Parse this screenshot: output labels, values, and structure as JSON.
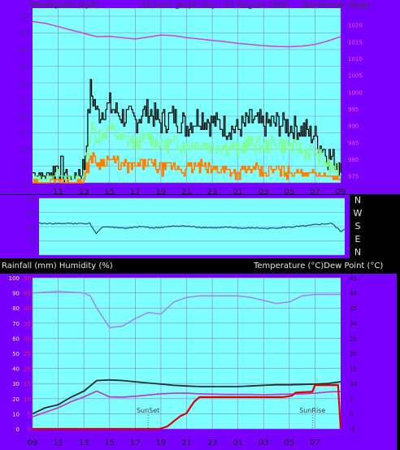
{
  "header": {
    "left_label": "Windspeed (kph)",
    "title": "24 hour graph day : 07 August 2020",
    "right_label": "Barometer (hpa)"
  },
  "lower_header": {
    "left_label": "Rainfall (mm)  Humidity (%)",
    "right_label": "Temperature (°C)Dew Point (°C)"
  },
  "colors": {
    "frame": "#7700ff",
    "plot_bg": "#80ffff",
    "grid": "#8a82c8",
    "left_tick": "#3b3b7a",
    "baro": "#d040e0",
    "gust": "#000000",
    "wind": "#80ff80",
    "wind_avg": "#ff8000",
    "direction": "#1f4f7f",
    "humidity": "#a080ff",
    "temperature": "#203028",
    "dewpoint": "#c030d0",
    "rain": "#e00000",
    "red_tick": "#ff2040"
  },
  "chart_data": [
    {
      "type": "line",
      "title": "24 hour graph day : 07 August 2020",
      "ylabel_left": "Windspeed (kph)",
      "ylabel_right": "Barometer (hpa)",
      "x_ticks": [
        "11",
        "13",
        "15",
        "17",
        "19",
        "21",
        "23",
        "01",
        "03",
        "05",
        "07",
        "09"
      ],
      "left_ticks": [
        "0",
        "5",
        "10",
        "15",
        "20",
        "25",
        "30",
        "35",
        "40",
        "45",
        "50"
      ],
      "right_ticks": [
        "975",
        "980",
        "985",
        "990",
        "995",
        "1000",
        "1005",
        "1010",
        "1015",
        "1020"
      ],
      "ylim_left": [
        0,
        50
      ],
      "ylim_right": [
        973,
        1025
      ],
      "grid": true,
      "series": [
        {
          "name": "Barometer",
          "axis": "right",
          "x": [
            9,
            10,
            11,
            12,
            13,
            14,
            15,
            16,
            17,
            18,
            19,
            20,
            21,
            22,
            23,
            24,
            25,
            26,
            27,
            28,
            29,
            30,
            31,
            32,
            33
          ],
          "values": [
            1021,
            1020.5,
            1019.5,
            1018.5,
            1017.5,
            1016.5,
            1016.6,
            1016.2,
            1015.8,
            1016.4,
            1017,
            1016.8,
            1016.2,
            1015.8,
            1015.4,
            1015,
            1014.5,
            1014.2,
            1013.8,
            1013.6,
            1013.5,
            1013.7,
            1014.2,
            1015.2,
            1016.5
          ]
        },
        {
          "name": "Wind gust",
          "axis": "left",
          "x": [
            9,
            10,
            11,
            12,
            13,
            13.5,
            14,
            15,
            16,
            17,
            18,
            19,
            20,
            21,
            22,
            23,
            24,
            25,
            26,
            27,
            28,
            29,
            30,
            31,
            32,
            33
          ],
          "values": [
            3,
            2,
            5,
            1,
            5,
            28,
            21,
            23,
            20,
            19,
            22,
            18,
            20,
            17,
            20,
            18,
            17,
            16,
            19,
            17,
            18,
            17,
            16,
            14,
            8,
            6
          ]
        },
        {
          "name": "Wind speed",
          "axis": "left",
          "x": [
            9,
            10,
            11,
            12,
            13,
            13.5,
            14,
            15,
            16,
            17,
            18,
            19,
            20,
            21,
            22,
            23,
            24,
            25,
            26,
            27,
            28,
            29,
            30,
            31,
            32,
            33
          ],
          "values": [
            1,
            1,
            3,
            1,
            2,
            16,
            14,
            16,
            13,
            12,
            14,
            11,
            12,
            11,
            12,
            11,
            11,
            10,
            12,
            11,
            12,
            11,
            10,
            9,
            5,
            3
          ]
        },
        {
          "name": "Wind average",
          "axis": "left",
          "x": [
            9,
            10,
            11,
            12,
            13,
            13.5,
            14,
            15,
            16,
            17,
            18,
            19,
            20,
            21,
            22,
            23,
            24,
            25,
            26,
            27,
            28,
            29,
            30,
            31,
            32,
            33
          ],
          "values": [
            0,
            0,
            1,
            0,
            1,
            8,
            6,
            7,
            5,
            5,
            6,
            4,
            5,
            4,
            5,
            4,
            4,
            3,
            4,
            3,
            4,
            3,
            3,
            3,
            2,
            1
          ]
        }
      ]
    },
    {
      "type": "line",
      "right_ticks": [
        "N",
        "W",
        "S",
        "E",
        "N"
      ],
      "left_ticks": [
        "360",
        "270",
        "180",
        "90",
        "0"
      ],
      "ylim": [
        0,
        360
      ],
      "grid": true,
      "series": [
        {
          "name": "Wind direction",
          "x": [
            9,
            13,
            13.5,
            14,
            15,
            16,
            17,
            18,
            19,
            20,
            21,
            22,
            23,
            24,
            25,
            26,
            27,
            28,
            29,
            30,
            31,
            32,
            32.7,
            33
          ],
          "values": [
            200,
            200,
            135,
            180,
            175,
            170,
            180,
            172,
            178,
            185,
            180,
            175,
            172,
            176,
            170,
            172,
            168,
            174,
            178,
            185,
            195,
            200,
            150,
            165
          ]
        }
      ]
    },
    {
      "type": "line",
      "x_ticks": [
        "11",
        "13",
        "15",
        "17",
        "19",
        "21",
        "23",
        "01",
        "03",
        "05",
        "07",
        "09"
      ],
      "left_ticks": [
        "0",
        "10",
        "20",
        "30",
        "40",
        "50",
        "60",
        "70",
        "80",
        "90",
        "100"
      ],
      "left_red_ticks": [
        "0",
        "5",
        "10",
        "15",
        "20",
        "25",
        "30",
        "35",
        "40",
        "45",
        "50"
      ],
      "right_ticks": [
        "-5",
        "0",
        "5",
        "10",
        "15",
        "20",
        "25",
        "30",
        "35",
        "40",
        "45"
      ],
      "ylim_left": [
        0,
        100
      ],
      "ylim_right": [
        -5,
        45
      ],
      "grid": true,
      "annotations": [
        "SunSet",
        "SunRise"
      ],
      "series": [
        {
          "name": "Humidity",
          "axis": "left",
          "x": [
            9,
            11,
            13,
            13.5,
            14,
            15,
            16,
            17,
            18,
            19,
            20,
            21,
            22,
            23,
            24,
            25,
            26,
            27,
            28,
            29,
            30,
            31,
            32,
            33
          ],
          "values": [
            90,
            91,
            90,
            88,
            80,
            67,
            68,
            73,
            77,
            76,
            84,
            87,
            88,
            88,
            88,
            88,
            87,
            85,
            83,
            84,
            88,
            89,
            89,
            89
          ]
        },
        {
          "name": "Temperature",
          "axis": "right",
          "x": [
            9,
            10,
            11,
            12,
            13,
            14,
            15,
            16,
            17,
            18,
            19,
            20,
            21,
            22,
            23,
            24,
            25,
            26,
            27,
            28,
            29,
            30,
            31,
            32,
            33
          ],
          "values": [
            0,
            2,
            3,
            5.5,
            7.5,
            11,
            11.2,
            11,
            10.6,
            10.2,
            9.8,
            9.4,
            9.2,
            9.0,
            9.0,
            9.0,
            9.0,
            9.2,
            9.4,
            9.6,
            9.6,
            9.7,
            9.8,
            10.0,
            10.6
          ]
        },
        {
          "name": "Dew point",
          "axis": "right",
          "x": [
            9,
            10,
            11,
            12,
            13,
            14,
            15,
            16,
            17,
            18,
            19,
            20,
            21,
            22,
            23,
            24,
            25,
            26,
            27,
            28,
            29,
            30,
            31,
            32,
            33
          ],
          "values": [
            -1,
            0.5,
            2,
            4,
            5.6,
            7.5,
            5.6,
            5.5,
            5.8,
            6.2,
            6.6,
            6.8,
            6.8,
            6.6,
            6.5,
            6.4,
            6.4,
            6.4,
            6.3,
            6.4,
            6.5,
            6.6,
            6.8,
            7.2,
            7.4
          ]
        },
        {
          "name": "Rainfall",
          "axis": "left_red",
          "x": [
            9,
            18.9,
            19.5,
            20,
            20.5,
            21,
            21.3,
            21.6,
            22,
            28.5,
            29.2,
            29.5,
            30.8,
            31,
            32.8,
            33
          ],
          "values": [
            0,
            0,
            0.8,
            2.5,
            4.2,
            5.2,
            7.2,
            9,
            10.5,
            10.5,
            11,
            12,
            12.3,
            14.5,
            14.5,
            0
          ]
        }
      ]
    }
  ]
}
